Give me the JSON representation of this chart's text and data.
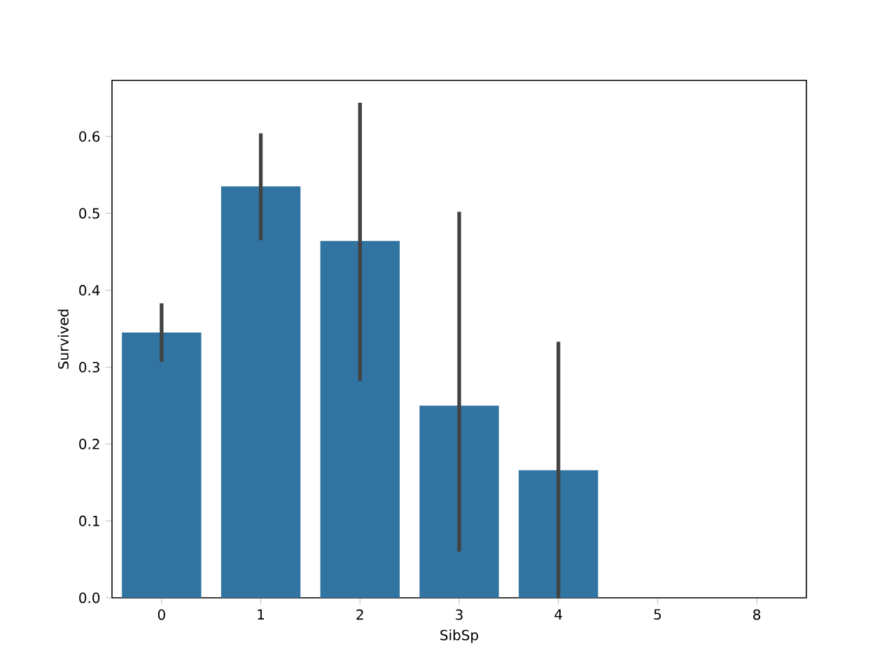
{
  "chart_data": {
    "type": "bar",
    "xlabel": "SibSp",
    "ylabel": "Survived",
    "categories": [
      "0",
      "1",
      "2",
      "3",
      "4",
      "5",
      "8"
    ],
    "values": [
      0.345,
      0.535,
      0.464,
      0.25,
      0.166,
      0,
      0
    ],
    "errors": [
      [
        0.307,
        0.383
      ],
      [
        0.465,
        0.604
      ],
      [
        0.282,
        0.644
      ],
      [
        0.06,
        0.502
      ],
      [
        0,
        0.333
      ],
      null,
      null
    ],
    "color": "#3274a1",
    "ylim": [
      0,
      0.673
    ],
    "yticks": [
      {
        "value": 0,
        "label": "0.0"
      },
      0.1,
      0.2,
      0.3,
      0.4,
      0.5,
      0.6
    ],
    "grid": false
  }
}
